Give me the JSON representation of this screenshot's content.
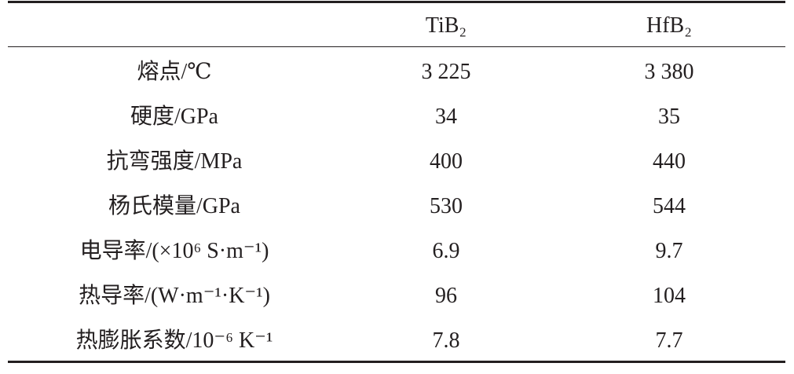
{
  "table": {
    "columns": [
      "TiB₂",
      "HfB₂"
    ],
    "rows": [
      [
        "熔点/℃",
        "3 225",
        "3 380"
      ],
      [
        "硬度/GPa",
        "34",
        "35"
      ],
      [
        "抗弯强度/MPa",
        "400",
        "440"
      ],
      [
        "杨氏模量/GPa",
        "530",
        "544"
      ],
      [
        "电导率/(×10⁶ S·m⁻¹)",
        "6.9",
        "9.7"
      ],
      [
        "热导率/(W·m⁻¹·K⁻¹)",
        "96",
        "104"
      ],
      [
        "热膨胀系数/10⁻⁶ K⁻¹",
        "7.8",
        "7.7"
      ]
    ]
  }
}
